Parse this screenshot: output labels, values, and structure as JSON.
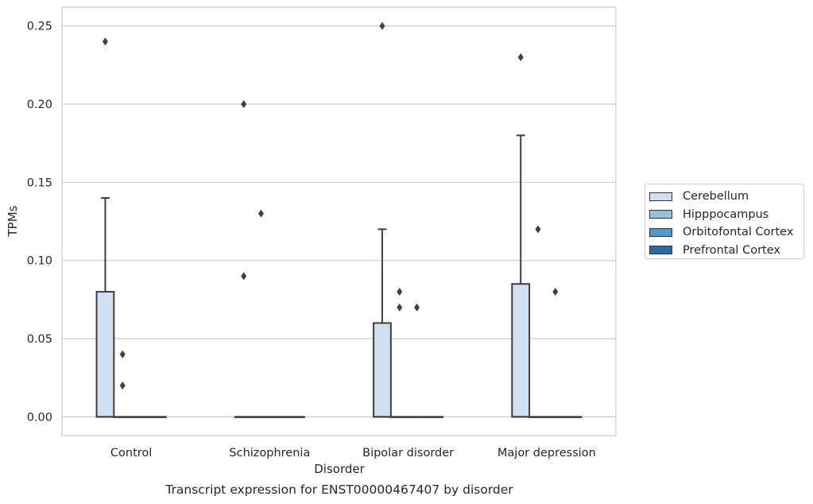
{
  "chart_data": {
    "type": "box",
    "title": "Transcript expression for ENST00000467407 by disorder",
    "xlabel": "Disorder",
    "ylabel": "TPMs",
    "ylim": [
      -0.012,
      0.262
    ],
    "yticks": [
      "0.00",
      "0.05",
      "0.10",
      "0.15",
      "0.20",
      "0.25"
    ],
    "ytick_values": [
      0,
      0.05,
      0.1,
      0.15,
      0.2,
      0.25
    ],
    "grid": true,
    "legend_position": "right",
    "categories": [
      "Control",
      "Schizophrenia",
      "Bipolar disorder",
      "Major depression"
    ],
    "series": [
      {
        "name": "Cerebellum",
        "color": "#d0e0f0",
        "boxes": [
          {
            "q1": 0,
            "median": 0,
            "q3": 0.08,
            "whisker_low": 0,
            "whisker_high": 0.14,
            "outliers": [
              0.24
            ]
          },
          {
            "q1": 0,
            "median": 0,
            "q3": 0,
            "whisker_low": 0,
            "whisker_high": 0,
            "outliers": [
              0.2,
              0.09
            ]
          },
          {
            "q1": 0,
            "median": 0,
            "q3": 0.06,
            "whisker_low": 0,
            "whisker_high": 0.12,
            "outliers": [
              0.25
            ]
          },
          {
            "q1": 0,
            "median": 0,
            "q3": 0.085,
            "whisker_low": 0,
            "whisker_high": 0.18,
            "outliers": [
              0.23
            ]
          }
        ]
      },
      {
        "name": "Hipppocampus",
        "color": "#9ac1dc",
        "boxes": [
          {
            "q1": 0,
            "median": 0,
            "q3": 0,
            "whisker_low": 0,
            "whisker_high": 0,
            "outliers": [
              0.04,
              0.02
            ]
          },
          {
            "q1": 0,
            "median": 0,
            "q3": 0,
            "whisker_low": 0,
            "whisker_high": 0,
            "outliers": [
              0.13
            ]
          },
          {
            "q1": 0,
            "median": 0,
            "q3": 0,
            "whisker_low": 0,
            "whisker_high": 0,
            "outliers": [
              0.08,
              0.07
            ]
          },
          {
            "q1": 0,
            "median": 0,
            "q3": 0,
            "whisker_low": 0,
            "whisker_high": 0,
            "outliers": [
              0.12
            ]
          }
        ]
      },
      {
        "name": "Orbitofontal Cortex",
        "color": "#5597c6",
        "boxes": [
          {
            "q1": 0,
            "median": 0,
            "q3": 0,
            "whisker_low": 0,
            "whisker_high": 0,
            "outliers": []
          },
          {
            "q1": 0,
            "median": 0,
            "q3": 0,
            "whisker_low": 0,
            "whisker_high": 0,
            "outliers": []
          },
          {
            "q1": 0,
            "median": 0,
            "q3": 0,
            "whisker_low": 0,
            "whisker_high": 0,
            "outliers": [
              0.07
            ]
          },
          {
            "q1": 0,
            "median": 0,
            "q3": 0,
            "whisker_low": 0,
            "whisker_high": 0,
            "outliers": [
              0.08
            ]
          }
        ]
      },
      {
        "name": "Prefrontal Cortex",
        "color": "#2a6aab",
        "boxes": [
          {
            "q1": 0,
            "median": 0,
            "q3": 0,
            "whisker_low": 0,
            "whisker_high": 0,
            "outliers": []
          },
          {
            "q1": 0,
            "median": 0,
            "q3": 0,
            "whisker_low": 0,
            "whisker_high": 0,
            "outliers": []
          },
          {
            "q1": 0,
            "median": 0,
            "q3": 0,
            "whisker_low": 0,
            "whisker_high": 0,
            "outliers": []
          },
          {
            "q1": 0,
            "median": 0,
            "q3": 0,
            "whisker_low": 0,
            "whisker_high": 0,
            "outliers": []
          }
        ]
      }
    ]
  }
}
